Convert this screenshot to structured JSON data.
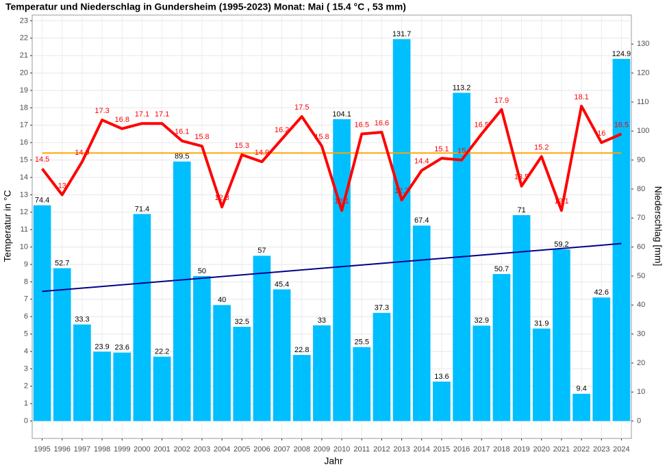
{
  "chart_data": {
    "type": "bar-line",
    "title": "Temperatur und Niederschlag in Gundersheim (1995-2023) Monat: Mai ( 15.4 °C , 53 mm)",
    "x_label": "Jahr",
    "y_label": "Temperatur in °C",
    "y2_label": "Niederschlag [mm]",
    "categories": [
      "1995",
      "1996",
      "1997",
      "1998",
      "1999",
      "2000",
      "2001",
      "2002",
      "2003",
      "2004",
      "2005",
      "2006",
      "2007",
      "2008",
      "2009",
      "2010",
      "2011",
      "2012",
      "2013",
      "2014",
      "2015",
      "2016",
      "2017",
      "2018",
      "2019",
      "2020",
      "2021",
      "2022",
      "2023",
      "2024"
    ],
    "series": [
      {
        "name": "Niederschlag",
        "type": "bar",
        "axis": "y2",
        "color": "#00bfff",
        "values": [
          74.4,
          52.7,
          33.3,
          23.9,
          23.6,
          71.4,
          22.2,
          89.5,
          50,
          40,
          32.5,
          57,
          45.4,
          22.8,
          33,
          104.1,
          25.5,
          37.3,
          131.7,
          67.4,
          13.6,
          113.2,
          32.9,
          50.7,
          71,
          31.9,
          59.2,
          9.4,
          42.6,
          124.9
        ]
      },
      {
        "name": "Temperatur",
        "type": "line",
        "axis": "y",
        "color": "#ff0000",
        "values": [
          14.5,
          13,
          14.9,
          17.3,
          16.8,
          17.1,
          17.1,
          16.1,
          15.8,
          12.3,
          15.3,
          14.9,
          16.2,
          17.5,
          15.8,
          12.1,
          16.5,
          16.6,
          12.7,
          14.4,
          15.1,
          15,
          16.5,
          17.9,
          13.5,
          15.2,
          12.1,
          18.1,
          16,
          16.5
        ]
      }
    ],
    "mean_line": {
      "value": 15.4,
      "color": "#ffa500"
    },
    "trend_line": {
      "color": "#00008b",
      "values": [
        7.45,
        10.2
      ]
    },
    "ylim": [
      -1,
      23.33
    ],
    "yticks": [
      0,
      1,
      2,
      3,
      4,
      5,
      6,
      7,
      8,
      9,
      10,
      11,
      12,
      13,
      14,
      15,
      16,
      17,
      18,
      19,
      20,
      21,
      22,
      23
    ],
    "y2lim": [
      -6,
      140
    ],
    "y2ticks": [
      0,
      10,
      20,
      30,
      40,
      50,
      60,
      70,
      80,
      90,
      100,
      110,
      120,
      130
    ],
    "grid": true
  }
}
